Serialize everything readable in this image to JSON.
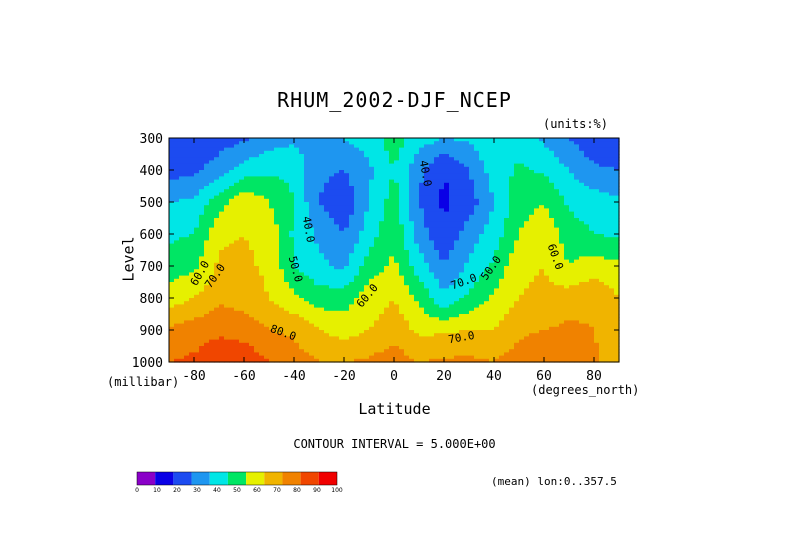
{
  "chart_data": {
    "type": "heatmap",
    "title": "RHUM_2002-DJF_NCEP",
    "units_label": "(units:%)",
    "xlabel": "Latitude",
    "x_units": "(degrees_north)",
    "ylabel": "Level",
    "y_units": "(millibar)",
    "xlim": [
      -90,
      90
    ],
    "ylim": [
      1000,
      300
    ],
    "x_ticks": [
      "-80",
      "-60",
      "-40",
      "-20",
      "0",
      "20",
      "40",
      "60",
      "80"
    ],
    "y_ticks": [
      "300",
      "400",
      "500",
      "600",
      "700",
      "800",
      "900",
      "1000"
    ],
    "contour_interval": "CONTOUR INTERVAL = 5.000E+00",
    "footnote": "(mean) lon:0..357.5",
    "contour_labels": [
      "60.0",
      "70.0",
      "40.0",
      "50.0",
      "80.0",
      "60.0",
      "70.0",
      "40.0",
      "70.0",
      "50.0",
      "60.0"
    ],
    "colorbar": {
      "ticks": [
        "0",
        "10",
        "20",
        "30",
        "40",
        "50",
        "60",
        "70",
        "80",
        "90",
        "100"
      ],
      "colors": [
        "#8a00c8",
        "#0a00e6",
        "#1c4bf0",
        "#1e96f0",
        "#00e6e6",
        "#00e664",
        "#e6f000",
        "#f0b400",
        "#f08200",
        "#f04600",
        "#f00000"
      ]
    },
    "columns": [
      {
        "lat": -90,
        "levels": [
          22,
          25,
          40,
          48,
          55,
          65,
          82,
          90
        ]
      },
      {
        "lat": -80,
        "levels": [
          22,
          28,
          42,
          50,
          58,
          70,
          85,
          92
        ]
      },
      {
        "lat": -70,
        "levels": [
          25,
          35,
          55,
          68,
          72,
          78,
          88,
          97
        ]
      },
      {
        "lat": -60,
        "levels": [
          28,
          45,
          68,
          70,
          72,
          75,
          86,
          97
        ]
      },
      {
        "lat": -50,
        "levels": [
          35,
          48,
          60,
          67,
          68,
          70,
          80,
          90
        ]
      },
      {
        "lat": -40,
        "levels": [
          38,
          48,
          50,
          48,
          50,
          62,
          78,
          85
        ]
      },
      {
        "lat": -30,
        "levels": [
          35,
          32,
          30,
          38,
          42,
          55,
          70,
          80
        ]
      },
      {
        "lat": -20,
        "levels": [
          40,
          30,
          22,
          30,
          38,
          55,
          66,
          80
        ]
      },
      {
        "lat": -10,
        "levels": [
          45,
          38,
          40,
          45,
          55,
          65,
          70,
          82
        ]
      },
      {
        "lat": 0,
        "levels": [
          55,
          50,
          55,
          58,
          62,
          70,
          76,
          85
        ]
      },
      {
        "lat": 10,
        "levels": [
          45,
          32,
          30,
          35,
          45,
          58,
          68,
          80
        ]
      },
      {
        "lat": 20,
        "levels": [
          40,
          20,
          18,
          22,
          30,
          42,
          68,
          82
        ]
      },
      {
        "lat": 30,
        "levels": [
          42,
          30,
          25,
          35,
          42,
          52,
          70,
          82
        ]
      },
      {
        "lat": 40,
        "levels": [
          48,
          45,
          40,
          45,
          52,
          62,
          70,
          80
        ]
      },
      {
        "lat": 50,
        "levels": [
          45,
          52,
          55,
          60,
          68,
          70,
          78,
          85
        ]
      },
      {
        "lat": 60,
        "levels": [
          38,
          48,
          60,
          68,
          70,
          72,
          80,
          88
        ]
      },
      {
        "lat": 70,
        "levels": [
          30,
          40,
          48,
          55,
          60,
          75,
          82,
          88
        ]
      },
      {
        "lat": 80,
        "levels": [
          22,
          32,
          45,
          50,
          65,
          78,
          80,
          82
        ]
      },
      {
        "lat": 90,
        "levels": [
          20,
          30,
          42,
          48,
          62,
          70,
          72,
          75
        ]
      }
    ]
  }
}
